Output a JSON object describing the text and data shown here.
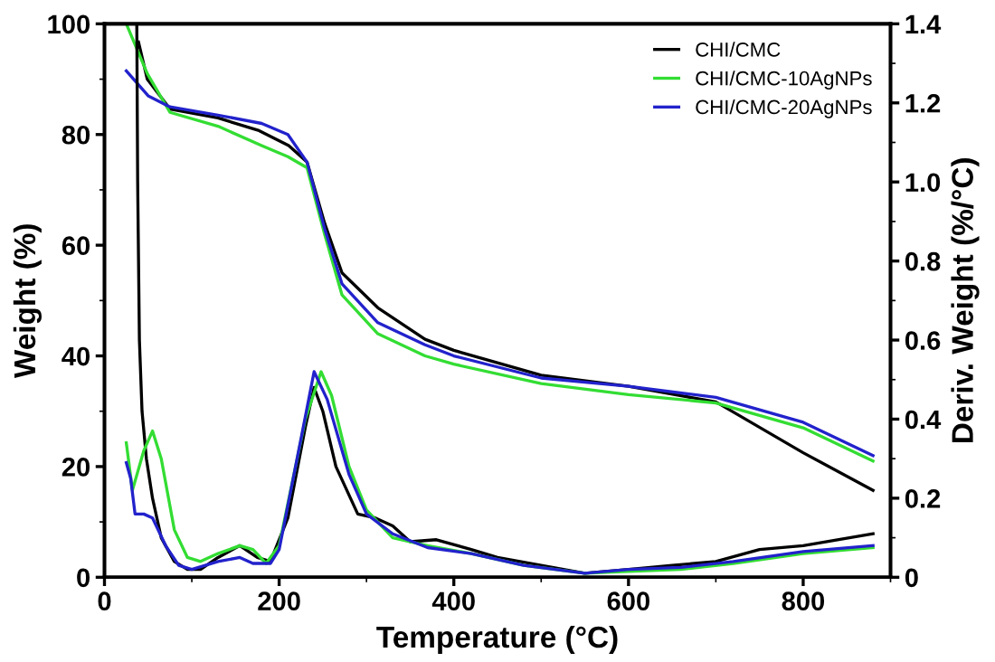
{
  "chart_data": {
    "type": "line",
    "xlabel": "Temperature (°C)",
    "ylabel": "Weight (%)",
    "y2label": "Deriv. Weight (%/°C)",
    "xlim": [
      0,
      900
    ],
    "xticks": [
      0,
      200,
      400,
      600,
      800
    ],
    "ylim": [
      0,
      100
    ],
    "yticks": [
      0,
      20,
      40,
      60,
      80,
      100
    ],
    "y2lim": [
      0,
      1.4
    ],
    "y2ticks": [
      0,
      0.2,
      0.4,
      0.6,
      0.8,
      {
        "value": 1.0,
        "label": "1.0"
      },
      1.2,
      1.4
    ],
    "legend": "top right",
    "grid": false,
    "series": [
      {
        "name": "CHI/CMC",
        "color": "#000000",
        "x": [
          39,
          49,
          75,
          130,
          177,
          211,
          232,
          252,
          272,
          313,
          367,
          400,
          500,
          600,
          700,
          800,
          880
        ],
        "values": [
          96.7,
          90,
          84.6,
          83,
          80.7,
          78,
          75,
          64,
          55,
          48.7,
          43,
          41,
          36.5,
          34.5,
          31.7,
          22.5,
          15.7
        ]
      },
      {
        "name": "CHI/CMC-10AgNPs",
        "color": "#33dd33",
        "x": [
          25,
          49,
          75,
          130,
          180,
          210,
          232,
          252,
          272,
          313,
          367,
          400,
          500,
          600,
          700,
          800,
          880
        ],
        "values": [
          100,
          91,
          84,
          81.5,
          78,
          76,
          74,
          62,
          51,
          44,
          40,
          38.5,
          35,
          33,
          31.5,
          27,
          21
        ]
      },
      {
        "name": "CHI/CMC-20AgNPs",
        "color": "#2222cc",
        "x": [
          25,
          50,
          75,
          130,
          180,
          210,
          232,
          252,
          272,
          313,
          367,
          400,
          500,
          600,
          700,
          800,
          880
        ],
        "values": [
          91.5,
          87,
          85,
          83.5,
          82,
          80,
          75,
          63,
          53,
          46,
          42,
          40,
          36,
          34.5,
          32.5,
          28,
          22
        ]
      },
      {
        "axis": "y2",
        "color": "#000000",
        "x": [
          37,
          38,
          40,
          43,
          48,
          55,
          65,
          80,
          95,
          110,
          130,
          155,
          175,
          190,
          210,
          230,
          240,
          250,
          265,
          290,
          310,
          330,
          350,
          380,
          420,
          450,
          500,
          550,
          600,
          650,
          700,
          750,
          800,
          880
        ],
        "values": [
          1.4,
          1.0,
          0.6,
          0.42,
          0.3,
          0.2,
          0.1,
          0.04,
          0.02,
          0.02,
          0.05,
          0.08,
          0.05,
          0.04,
          0.15,
          0.38,
          0.48,
          0.42,
          0.28,
          0.16,
          0.15,
          0.13,
          0.09,
          0.095,
          0.07,
          0.05,
          0.03,
          0.01,
          0.02,
          0.03,
          0.04,
          0.07,
          0.08,
          0.11
        ]
      },
      {
        "axis": "y2",
        "color": "#33dd33",
        "x": [
          25,
          32,
          45,
          55,
          65,
          80,
          95,
          110,
          130,
          155,
          170,
          185,
          200,
          230,
          248,
          260,
          280,
          300,
          330,
          370,
          420,
          480,
          550,
          600,
          660,
          720,
          800,
          880
        ],
        "values": [
          0.34,
          0.22,
          0.32,
          0.37,
          0.3,
          0.12,
          0.05,
          0.04,
          0.06,
          0.08,
          0.07,
          0.035,
          0.08,
          0.4,
          0.52,
          0.46,
          0.28,
          0.17,
          0.1,
          0.08,
          0.06,
          0.03,
          0.01,
          0.015,
          0.02,
          0.035,
          0.06,
          0.075
        ]
      },
      {
        "axis": "y2",
        "color": "#2222cc",
        "x": [
          25,
          30,
          35,
          45,
          55,
          70,
          85,
          100,
          130,
          155,
          170,
          190,
          200,
          225,
          240,
          255,
          280,
          300,
          330,
          370,
          420,
          480,
          550,
          600,
          660,
          720,
          800,
          880
        ],
        "values": [
          0.29,
          0.25,
          0.16,
          0.16,
          0.15,
          0.08,
          0.03,
          0.02,
          0.04,
          0.05,
          0.035,
          0.035,
          0.07,
          0.35,
          0.52,
          0.45,
          0.26,
          0.16,
          0.11,
          0.075,
          0.06,
          0.03,
          0.01,
          0.02,
          0.025,
          0.04,
          0.065,
          0.08
        ]
      }
    ]
  }
}
